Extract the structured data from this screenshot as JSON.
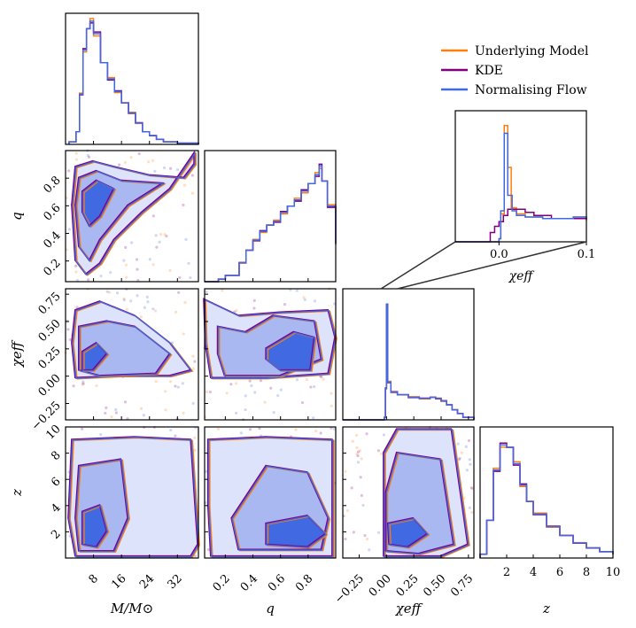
{
  "chart_data": {
    "type": "corner",
    "parameters": [
      "M_chirp",
      "q",
      "chi_eff",
      "z"
    ],
    "axis_labels": {
      "M_chirp": "M/M⊙",
      "q": "q",
      "chi_eff": "χeff",
      "z": "z"
    },
    "ranges": {
      "M_chirp": [
        0,
        38
      ],
      "q": [
        0.05,
        1.0
      ],
      "chi_eff": [
        -0.4,
        0.8
      ],
      "z": [
        0,
        10
      ]
    },
    "ticks": {
      "M_chirp": [
        8,
        16,
        24,
        32
      ],
      "q_x": [
        0.2,
        0.4,
        0.6,
        0.8
      ],
      "q_y": [
        0.2,
        0.4,
        0.6,
        0.8
      ],
      "chi_eff_x": [
        -0.25,
        0.0,
        0.25,
        0.5,
        0.75
      ],
      "chi_eff_y": [
        -0.25,
        0.0,
        0.25,
        0.5,
        0.75
      ],
      "z_x": [
        2,
        4,
        6,
        8,
        10
      ],
      "z_y": [
        2,
        4,
        6,
        8,
        10
      ]
    },
    "tick_labels": {
      "M_chirp": [
        "8",
        "16",
        "24",
        "32"
      ],
      "q": [
        "0.2",
        "0.4",
        "0.6",
        "0.8"
      ],
      "chi_eff": [
        "−0.25",
        "0.00",
        "0.25",
        "0.50",
        "0.75"
      ],
      "z": [
        "2",
        "4",
        "6",
        "8",
        "10"
      ]
    },
    "legend": {
      "position": "top-right",
      "entries": [
        {
          "name": "Underlying Model",
          "color": "#ff7f0e"
        },
        {
          "name": "KDE",
          "color": "#800080"
        },
        {
          "name": "Normalising Flow",
          "color": "#4169e1"
        }
      ]
    },
    "inset": {
      "title": "χeff",
      "xlim": [
        -0.05,
        0.1
      ],
      "xticks": [
        0.0,
        0.1
      ],
      "xtick_labels": [
        "0.0",
        "0.1"
      ],
      "histograms": {
        "model": [
          [
            -0.05,
            0
          ],
          [
            0.0,
            2
          ],
          [
            0.002,
            18
          ],
          [
            0.006,
            75
          ],
          [
            0.01,
            48
          ],
          [
            0.014,
            22
          ],
          [
            0.02,
            18
          ],
          [
            0.03,
            16
          ],
          [
            0.05,
            15
          ],
          [
            0.07,
            15
          ],
          [
            0.085,
            16
          ],
          [
            0.1,
            15
          ]
        ],
        "kde": [
          [
            -0.05,
            0
          ],
          [
            -0.012,
            0
          ],
          [
            -0.01,
            6
          ],
          [
            -0.005,
            10
          ],
          [
            0.0,
            13
          ],
          [
            0.005,
            17
          ],
          [
            0.01,
            21
          ],
          [
            0.02,
            21
          ],
          [
            0.03,
            19
          ],
          [
            0.04,
            17
          ],
          [
            0.06,
            15
          ],
          [
            0.08,
            15
          ],
          [
            0.1,
            14
          ]
        ],
        "flow": [
          [
            -0.05,
            0
          ],
          [
            0.0,
            2
          ],
          [
            0.002,
            20
          ],
          [
            0.006,
            70
          ],
          [
            0.01,
            30
          ],
          [
            0.015,
            20
          ],
          [
            0.02,
            17
          ],
          [
            0.03,
            16
          ],
          [
            0.05,
            15
          ],
          [
            0.07,
            15
          ],
          [
            0.085,
            16
          ],
          [
            0.1,
            15
          ]
        ]
      }
    },
    "marginals": {
      "M_chirp": [
        [
          1,
          2
        ],
        [
          3,
          10
        ],
        [
          4,
          40
        ],
        [
          5,
          75
        ],
        [
          6,
          92
        ],
        [
          7,
          98
        ],
        [
          8,
          88
        ],
        [
          10,
          65
        ],
        [
          12,
          52
        ],
        [
          14,
          42
        ],
        [
          16,
          33
        ],
        [
          18,
          25
        ],
        [
          20,
          17
        ],
        [
          22,
          10
        ],
        [
          24,
          7
        ],
        [
          26,
          4
        ],
        [
          28,
          2
        ],
        [
          32,
          1
        ],
        [
          38,
          0
        ]
      ],
      "q": [
        [
          0.05,
          0
        ],
        [
          0.15,
          2
        ],
        [
          0.2,
          5
        ],
        [
          0.3,
          15
        ],
        [
          0.35,
          25
        ],
        [
          0.4,
          33
        ],
        [
          0.45,
          40
        ],
        [
          0.5,
          45
        ],
        [
          0.55,
          48
        ],
        [
          0.6,
          55
        ],
        [
          0.65,
          60
        ],
        [
          0.7,
          65
        ],
        [
          0.75,
          72
        ],
        [
          0.8,
          78
        ],
        [
          0.85,
          85
        ],
        [
          0.88,
          92
        ],
        [
          0.9,
          80
        ],
        [
          0.94,
          60
        ],
        [
          1.0,
          30
        ]
      ],
      "chi_eff": [
        [
          -0.4,
          0
        ],
        [
          -0.1,
          0
        ],
        [
          -0.02,
          2
        ],
        [
          -0.01,
          25
        ],
        [
          0.0,
          92
        ],
        [
          0.01,
          30
        ],
        [
          0.04,
          22
        ],
        [
          0.1,
          20
        ],
        [
          0.2,
          18
        ],
        [
          0.3,
          17
        ],
        [
          0.4,
          18
        ],
        [
          0.45,
          17
        ],
        [
          0.5,
          15
        ],
        [
          0.55,
          12
        ],
        [
          0.6,
          8
        ],
        [
          0.65,
          5
        ],
        [
          0.7,
          2
        ],
        [
          0.8,
          0
        ]
      ],
      "z": [
        [
          0,
          3
        ],
        [
          0.5,
          30
        ],
        [
          1,
          70
        ],
        [
          1.5,
          90
        ],
        [
          2,
          88
        ],
        [
          2.5,
          75
        ],
        [
          3,
          58
        ],
        [
          3.5,
          45
        ],
        [
          4,
          35
        ],
        [
          5,
          25
        ],
        [
          6,
          18
        ],
        [
          7,
          12
        ],
        [
          8,
          8
        ],
        [
          9,
          5
        ],
        [
          10,
          3
        ]
      ]
    },
    "contours": {
      "q_vs_M": [
        [
          [
            3,
            0.88
          ],
          [
            8,
            0.92
          ],
          [
            14,
            0.88
          ],
          [
            24,
            0.82
          ],
          [
            34,
            0.8
          ],
          [
            37,
            0.9
          ],
          [
            37,
            0.98
          ],
          [
            30,
            0.72
          ],
          [
            22,
            0.55
          ],
          [
            14,
            0.35
          ],
          [
            10,
            0.18
          ],
          [
            6,
            0.1
          ],
          [
            3,
            0.2
          ],
          [
            2,
            0.6
          ]
        ],
        [
          [
            4,
            0.8
          ],
          [
            9,
            0.85
          ],
          [
            16,
            0.78
          ],
          [
            28,
            0.76
          ],
          [
            18,
            0.6
          ],
          [
            10,
            0.35
          ],
          [
            7,
            0.2
          ],
          [
            4,
            0.3
          ],
          [
            3,
            0.6
          ]
        ],
        [
          [
            5,
            0.7
          ],
          [
            9,
            0.78
          ],
          [
            14,
            0.72
          ],
          [
            10,
            0.52
          ],
          [
            7,
            0.45
          ],
          [
            5,
            0.55
          ]
        ]
      ],
      "chi_vs_M": [
        [
          [
            3,
            0.6
          ],
          [
            10,
            0.68
          ],
          [
            20,
            0.55
          ],
          [
            30,
            0.3
          ],
          [
            36,
            0.05
          ],
          [
            30,
            0.0
          ],
          [
            16,
            0.0
          ],
          [
            3,
            -0.02
          ],
          [
            2,
            0.3
          ]
        ],
        [
          [
            4,
            0.45
          ],
          [
            12,
            0.5
          ],
          [
            20,
            0.45
          ],
          [
            30,
            0.2
          ],
          [
            26,
            0.02
          ],
          [
            10,
            0.0
          ],
          [
            4,
            0.05
          ]
        ],
        [
          [
            5,
            0.22
          ],
          [
            9,
            0.3
          ],
          [
            12,
            0.2
          ],
          [
            8,
            0.05
          ],
          [
            5,
            0.05
          ]
        ]
      ],
      "chi_vs_q": [
        [
          [
            0.05,
            0.7
          ],
          [
            0.3,
            0.55
          ],
          [
            0.6,
            0.58
          ],
          [
            0.95,
            0.6
          ],
          [
            1.0,
            0.35
          ],
          [
            0.95,
            0.02
          ],
          [
            0.5,
            -0.02
          ],
          [
            0.1,
            -0.02
          ],
          [
            0.06,
            0.3
          ]
        ],
        [
          [
            0.15,
            0.45
          ],
          [
            0.35,
            0.4
          ],
          [
            0.55,
            0.55
          ],
          [
            0.85,
            0.5
          ],
          [
            0.9,
            0.15
          ],
          [
            0.6,
            0.0
          ],
          [
            0.2,
            0.0
          ],
          [
            0.15,
            0.2
          ]
        ],
        [
          [
            0.5,
            0.25
          ],
          [
            0.7,
            0.4
          ],
          [
            0.85,
            0.35
          ],
          [
            0.82,
            0.05
          ],
          [
            0.6,
            0.05
          ],
          [
            0.5,
            0.15
          ]
        ]
      ],
      "z_vs_M": [
        [
          [
            2,
            9
          ],
          [
            20,
            9.2
          ],
          [
            36,
            9
          ],
          [
            38,
            1
          ],
          [
            36,
            0.1
          ],
          [
            3,
            0.1
          ],
          [
            1,
            3
          ]
        ],
        [
          [
            4,
            7
          ],
          [
            16,
            7.5
          ],
          [
            18,
            3
          ],
          [
            14,
            0.5
          ],
          [
            4,
            0.5
          ],
          [
            3,
            3
          ]
        ],
        [
          [
            5,
            3.5
          ],
          [
            10,
            4
          ],
          [
            12,
            2
          ],
          [
            9,
            0.8
          ],
          [
            5,
            1
          ]
        ]
      ],
      "z_vs_q": [
        [
          [
            0.08,
            9
          ],
          [
            0.5,
            9.2
          ],
          [
            0.98,
            9
          ],
          [
            0.98,
            0.1
          ],
          [
            0.1,
            0.1
          ],
          [
            0.08,
            4
          ]
        ],
        [
          [
            0.25,
            3
          ],
          [
            0.5,
            7
          ],
          [
            0.8,
            6.5
          ],
          [
            0.95,
            3
          ],
          [
            0.9,
            0.6
          ],
          [
            0.3,
            0.6
          ]
        ],
        [
          [
            0.5,
            2.6
          ],
          [
            0.8,
            3.2
          ],
          [
            0.93,
            1.8
          ],
          [
            0.8,
            0.8
          ],
          [
            0.5,
            1
          ]
        ]
      ],
      "z_vs_chi": [
        [
          [
            -0.02,
            8
          ],
          [
            0.1,
            9.8
          ],
          [
            0.6,
            9.8
          ],
          [
            0.75,
            1
          ],
          [
            0.5,
            0.1
          ],
          [
            -0.02,
            0.1
          ]
        ],
        [
          [
            0.0,
            5
          ],
          [
            0.1,
            8
          ],
          [
            0.5,
            7.5
          ],
          [
            0.62,
            1
          ],
          [
            0.3,
            0.3
          ],
          [
            0.0,
            0.5
          ]
        ],
        [
          [
            0.02,
            2.6
          ],
          [
            0.25,
            3
          ],
          [
            0.38,
            1.8
          ],
          [
            0.2,
            0.8
          ],
          [
            0.03,
            1
          ]
        ]
      ]
    }
  }
}
